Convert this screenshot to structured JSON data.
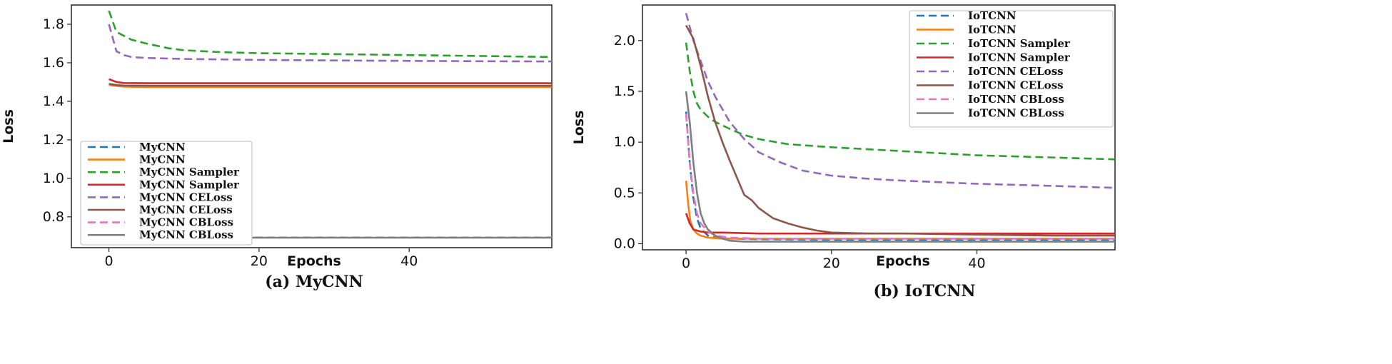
{
  "chart_data": [
    {
      "type": "line",
      "caption": "(a) MyCNN",
      "xlabel": "Epochs",
      "ylabel": "Loss",
      "xlim": [
        -5,
        59
      ],
      "ylim": [
        0.64,
        1.9
      ],
      "xticks": [
        0,
        20,
        40
      ],
      "yticks": [
        0.8,
        1.0,
        1.2,
        1.4,
        1.6,
        1.8
      ],
      "ytick_labels": [
        "0.8",
        "1.0",
        "1.2",
        "1.4",
        "1.6",
        "1.8"
      ],
      "legend_position": "bottom-left",
      "series": [
        {
          "name": "MyCNN",
          "color": "#1f77b4",
          "dash": true,
          "x": [
            0,
            1,
            2,
            5,
            10,
            20,
            30,
            40,
            50,
            59
          ],
          "y": [
            1.49,
            1.485,
            1.48,
            1.478,
            1.477,
            1.477,
            1.476,
            1.476,
            1.476,
            1.476
          ]
        },
        {
          "name": "MyCNN",
          "color": "#ff7f0e",
          "dash": false,
          "x": [
            0,
            1,
            2,
            5,
            10,
            20,
            30,
            40,
            50,
            59
          ],
          "y": [
            1.485,
            1.48,
            1.476,
            1.474,
            1.474,
            1.474,
            1.474,
            1.474,
            1.474,
            1.474
          ]
        },
        {
          "name": "MyCNN Sampler",
          "color": "#2ca02c",
          "dash": true,
          "x": [
            0,
            1,
            2,
            3,
            5,
            8,
            10,
            15,
            20,
            30,
            40,
            50,
            59
          ],
          "y": [
            1.87,
            1.76,
            1.74,
            1.72,
            1.7,
            1.675,
            1.665,
            1.655,
            1.65,
            1.645,
            1.64,
            1.635,
            1.63
          ]
        },
        {
          "name": "MyCNN Sampler",
          "color": "#d62728",
          "dash": false,
          "x": [
            0,
            1,
            2,
            5,
            10,
            20,
            30,
            40,
            50,
            59
          ],
          "y": [
            1.515,
            1.5,
            1.495,
            1.494,
            1.494,
            1.494,
            1.494,
            1.494,
            1.494,
            1.494
          ]
        },
        {
          "name": "MyCNN CELoss",
          "color": "#9467bd",
          "dash": true,
          "x": [
            0,
            1,
            2,
            3,
            5,
            10,
            20,
            30,
            40,
            50,
            59
          ],
          "y": [
            1.8,
            1.66,
            1.64,
            1.63,
            1.625,
            1.62,
            1.615,
            1.612,
            1.61,
            1.608,
            1.607
          ]
        },
        {
          "name": "MyCNN CELoss",
          "color": "#8c564b",
          "dash": false,
          "x": [
            0,
            1,
            2,
            5,
            10,
            20,
            30,
            40,
            50,
            59
          ],
          "y": [
            1.49,
            1.484,
            1.482,
            1.481,
            1.481,
            1.481,
            1.481,
            1.481,
            1.481,
            1.481
          ]
        },
        {
          "name": "MyCNN CBLoss",
          "color": "#e377c2",
          "dash": true,
          "x": [
            0,
            1,
            5,
            10,
            20,
            30,
            40,
            50,
            59
          ],
          "y": [
            0.693,
            0.693,
            0.693,
            0.693,
            0.693,
            0.693,
            0.693,
            0.693,
            0.693
          ]
        },
        {
          "name": "MyCNN CBLoss",
          "color": "#7f7f7f",
          "dash": false,
          "x": [
            0,
            1,
            5,
            10,
            20,
            30,
            40,
            50,
            59
          ],
          "y": [
            0.692,
            0.692,
            0.692,
            0.692,
            0.692,
            0.692,
            0.692,
            0.692,
            0.692
          ]
        }
      ]
    },
    {
      "type": "line",
      "caption": "(b) IoTCNN",
      "xlabel": "Epochs",
      "ylabel": "Loss",
      "xlim": [
        -6,
        59
      ],
      "ylim": [
        -0.06,
        2.35
      ],
      "xticks": [
        0,
        20,
        40
      ],
      "yticks": [
        0.0,
        0.5,
        1.0,
        1.5,
        2.0
      ],
      "ytick_labels": [
        "0.0",
        "0.5",
        "1.0",
        "1.5",
        "2.0"
      ],
      "legend_position": "top-right",
      "series": [
        {
          "name": "IoTCNN",
          "color": "#1f77b4",
          "dash": true,
          "x": [
            0,
            0.5,
            1,
            1.5,
            2,
            3,
            4,
            6,
            10,
            20,
            30,
            40,
            50,
            59
          ],
          "y": [
            1.3,
            0.8,
            0.45,
            0.25,
            0.15,
            0.08,
            0.06,
            0.05,
            0.045,
            0.04,
            0.04,
            0.04,
            0.04,
            0.04
          ]
        },
        {
          "name": "IoTCNN",
          "color": "#ff7f0e",
          "dash": false,
          "x": [
            0,
            0.3,
            0.6,
            1,
            1.5,
            2,
            3,
            5,
            10,
            20,
            30,
            40,
            50,
            59
          ],
          "y": [
            0.62,
            0.38,
            0.22,
            0.14,
            0.1,
            0.08,
            0.06,
            0.05,
            0.05,
            0.05,
            0.05,
            0.05,
            0.05,
            0.05
          ]
        },
        {
          "name": "IoTCNN Sampler",
          "color": "#2ca02c",
          "dash": true,
          "x": [
            0,
            0.5,
            1,
            1.5,
            2,
            3,
            4,
            6,
            8,
            10,
            14,
            20,
            30,
            40,
            50,
            59
          ],
          "y": [
            1.98,
            1.7,
            1.5,
            1.38,
            1.32,
            1.25,
            1.2,
            1.13,
            1.07,
            1.03,
            0.98,
            0.95,
            0.91,
            0.87,
            0.85,
            0.83
          ]
        },
        {
          "name": "IoTCNN Sampler",
          "color": "#d62728",
          "dash": false,
          "x": [
            0,
            0.5,
            1,
            2,
            3,
            5,
            10,
            20,
            30,
            40,
            50,
            59
          ],
          "y": [
            0.3,
            0.2,
            0.14,
            0.12,
            0.11,
            0.11,
            0.1,
            0.1,
            0.1,
            0.1,
            0.1,
            0.1
          ]
        },
        {
          "name": "IoTCNN CELoss",
          "color": "#9467bd",
          "dash": true,
          "x": [
            0,
            1,
            2,
            3,
            4,
            6,
            8,
            10,
            13,
            16,
            20,
            25,
            30,
            40,
            50,
            59
          ],
          "y": [
            2.27,
            2.0,
            1.8,
            1.6,
            1.45,
            1.2,
            1.03,
            0.9,
            0.8,
            0.72,
            0.67,
            0.64,
            0.62,
            0.59,
            0.57,
            0.55
          ]
        },
        {
          "name": "IoTCNN CELoss",
          "color": "#8c564b",
          "dash": false,
          "x": [
            0,
            1,
            2,
            3,
            4,
            5,
            6,
            7,
            8,
            9,
            10,
            11,
            12,
            14,
            16,
            18,
            20,
            25,
            30,
            40,
            50,
            59
          ],
          "y": [
            2.15,
            2.02,
            1.75,
            1.45,
            1.2,
            1.0,
            0.82,
            0.65,
            0.48,
            0.43,
            0.35,
            0.3,
            0.25,
            0.2,
            0.16,
            0.13,
            0.11,
            0.1,
            0.1,
            0.09,
            0.08,
            0.08
          ]
        },
        {
          "name": "IoTCNN CBLoss",
          "color": "#e377c2",
          "dash": true,
          "x": [
            0,
            0.5,
            1,
            1.5,
            2,
            3,
            4,
            6,
            10,
            20,
            30,
            40,
            50,
            59
          ],
          "y": [
            1.28,
            0.8,
            0.5,
            0.3,
            0.2,
            0.12,
            0.08,
            0.06,
            0.05,
            0.05,
            0.05,
            0.05,
            0.05,
            0.05
          ]
        },
        {
          "name": "IoTCNN CBLoss",
          "color": "#7f7f7f",
          "dash": false,
          "x": [
            0,
            0.5,
            1,
            1.5,
            2,
            2.5,
            3,
            4,
            5,
            6,
            8,
            10,
            20,
            30,
            40,
            50,
            59
          ],
          "y": [
            1.5,
            1.2,
            0.8,
            0.5,
            0.3,
            0.2,
            0.14,
            0.08,
            0.05,
            0.03,
            0.02,
            0.02,
            0.02,
            0.02,
            0.02,
            0.02,
            0.02
          ]
        }
      ]
    }
  ]
}
